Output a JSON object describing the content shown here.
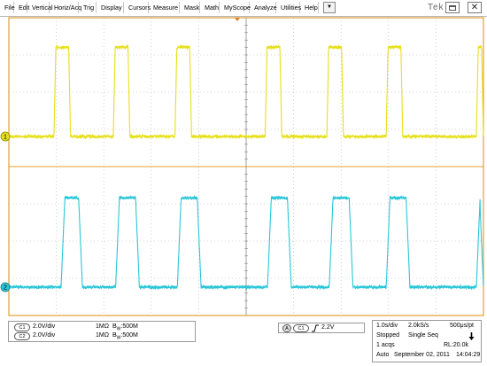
{
  "menu": [
    "File",
    "Edit",
    "Vertical",
    "Horiz/Acq",
    "Trig",
    "Display",
    "Cursors",
    "Measure",
    "Mask",
    "Math",
    "MyScope",
    "Analyze",
    "Utilities",
    "Help"
  ],
  "dropdown_arrow": "▼",
  "logo_text": "Tek",
  "close_glyph": "✕",
  "channels": {
    "ch1": {
      "marker": "1",
      "badge": "C1",
      "scale": "2.0V/div",
      "coupling": "1MΩ",
      "bw_prefix": "B",
      "bw_sub": "W",
      "bw_value": ":500M",
      "color": "#e6e01a"
    },
    "ch2": {
      "marker": "2",
      "badge": "C2",
      "scale": "2.0V/div",
      "coupling": "1MΩ",
      "bw_prefix": "B",
      "bw_sub": "W",
      "bw_value": ":500M",
      "color": "#2ac6d8"
    }
  },
  "trigger": {
    "mode_badge": "A",
    "source_badge": "C1",
    "slope": "rising-edge-icon",
    "level": "2.2V"
  },
  "timebase": {
    "scale": "1.0s/div",
    "sample_rate": "2.0kS/s",
    "resolution": "500μs/pt",
    "state": "Stopped",
    "seq": "Single Seq",
    "acqs": "1 acqs",
    "record_length": "RL:20.0k",
    "mode": "Auto",
    "date": "September 02, 2011",
    "time": "14:04:29"
  },
  "colors": {
    "frame": "#e0a030",
    "grid": "#9a9a9a",
    "ch1": "#e6e01a",
    "ch2": "#2ac6d8"
  },
  "chart_data": {
    "type": "line",
    "title": "",
    "xlabel": "",
    "ylabel": "",
    "x_range_divisions": [
      0,
      10
    ],
    "series": [
      {
        "name": "",
        "low_v": 0,
        "high_v": 4.8,
        "pulse_edges_div": [
          [
            0.95,
            1.3
          ],
          [
            2.2,
            2.55
          ],
          [
            3.5,
            3.85
          ],
          [
            5.4,
            5.75
          ],
          [
            6.7,
            7.05
          ],
          [
            7.95,
            8.3
          ],
          [
            9.85,
            10.0
          ]
        ]
      },
      {
        "name": "",
        "low_v": 0,
        "high_v": 4.8,
        "pulse_edges_div": [
          [
            1.1,
            1.55
          ],
          [
            2.25,
            2.75
          ],
          [
            3.55,
            4.05
          ],
          [
            5.45,
            5.95
          ],
          [
            6.75,
            7.25
          ],
          [
            7.95,
            8.45
          ],
          [
            9.85,
            10.0
          ]
        ]
      }
    ],
    "grid": true
  }
}
